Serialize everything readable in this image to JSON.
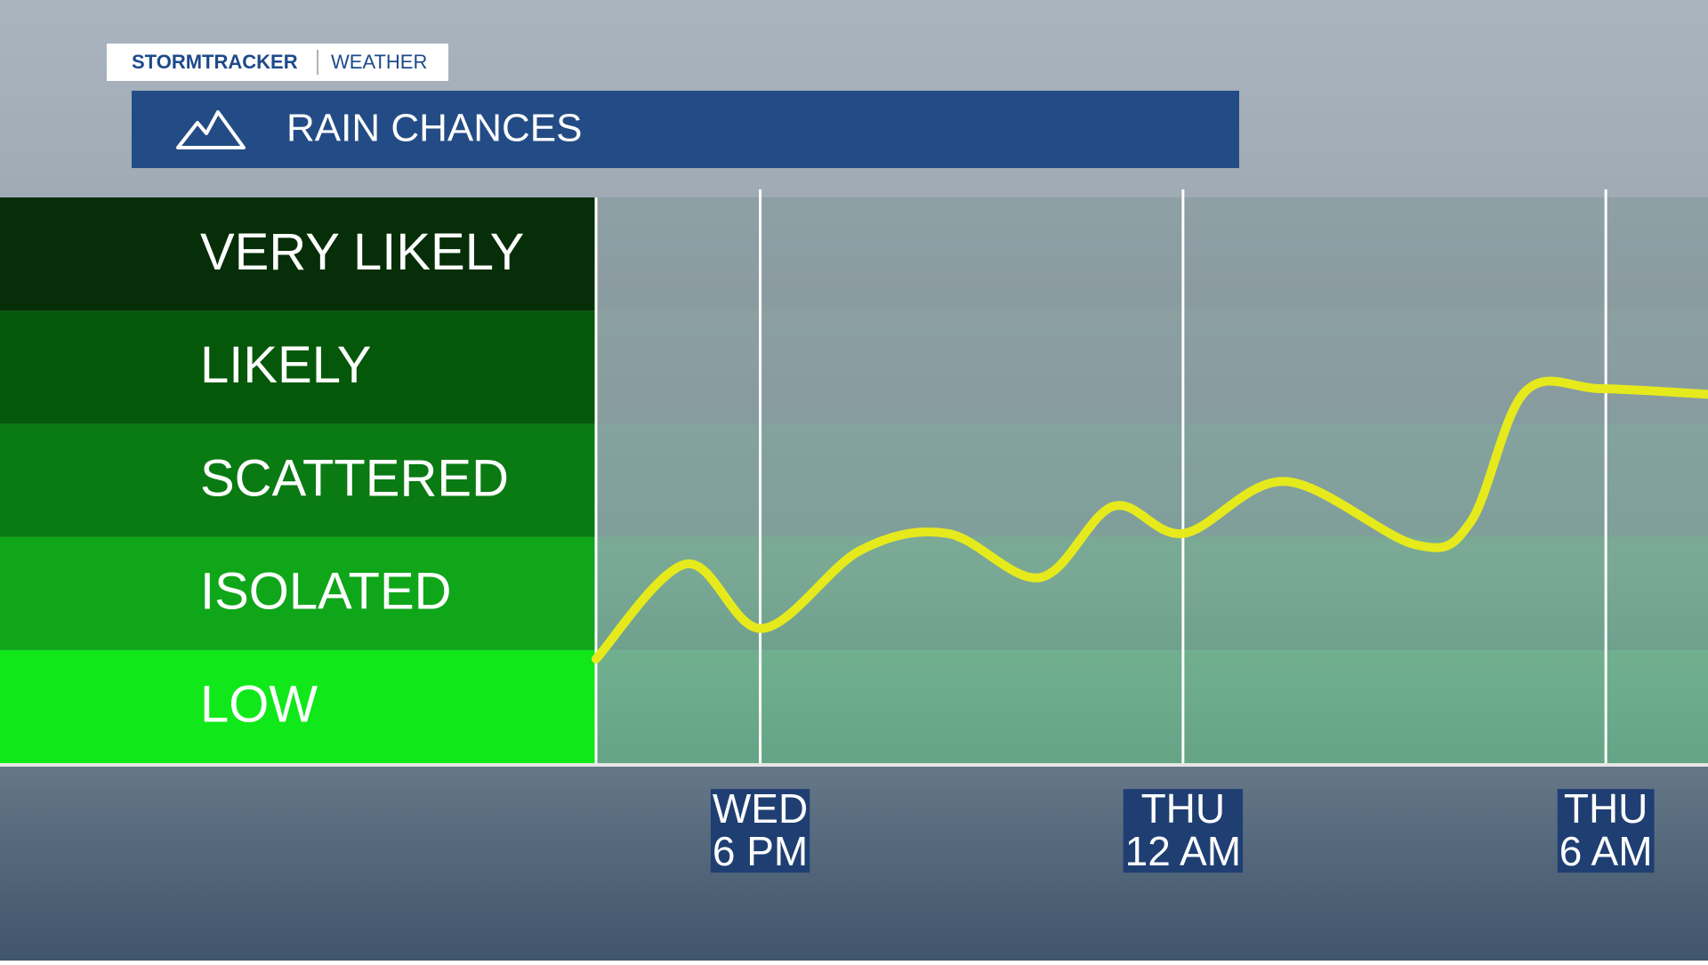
{
  "header": {
    "brand": "STORMTRACKER",
    "section": "WEATHER"
  },
  "chart_data": {
    "type": "line",
    "title": "RAIN CHANCES",
    "x": [
      15.67,
      16.95,
      18.03,
      19.42,
      20.66,
      21.97,
      23.01,
      24.01,
      25.45,
      27.3,
      28.08,
      28.85,
      29.93,
      31.45
    ],
    "values": [
      0.92,
      1.76,
      1.19,
      1.88,
      2.03,
      1.64,
      2.27,
      2.03,
      2.49,
      1.93,
      2.13,
      3.28,
      3.31,
      3.26
    ],
    "color": "#e6ea1c",
    "xlim": [
      15.67,
      31.45
    ],
    "xticks": [
      {
        "value": 18,
        "label": "WED\n6 PM"
      },
      {
        "value": 24,
        "label": "THU\n12 AM"
      },
      {
        "value": 30,
        "label": "THU\n6 AM"
      }
    ],
    "ylim": [
      0,
      5
    ],
    "yticks": [
      {
        "value": 0.5,
        "label": "LOW"
      },
      {
        "value": 1.5,
        "label": "ISOLATED"
      },
      {
        "value": 2.5,
        "label": "SCATTERED"
      },
      {
        "value": 3.5,
        "label": "LIKELY"
      },
      {
        "value": 4.5,
        "label": "VERY LIKELY"
      }
    ],
    "grid": true
  }
}
